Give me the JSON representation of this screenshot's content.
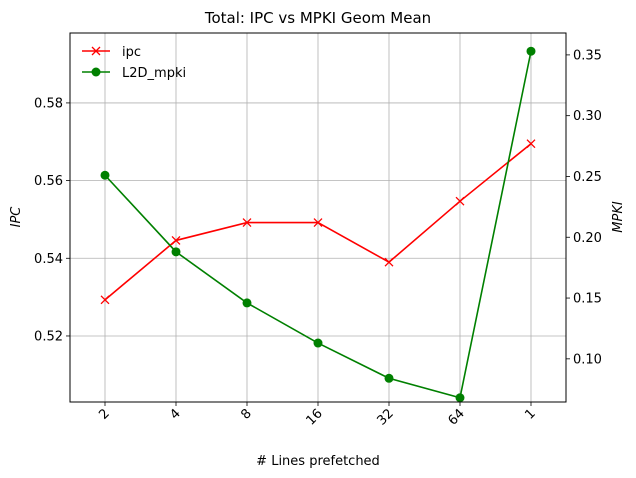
{
  "chart_data": {
    "type": "line",
    "title": "Total: IPC vs MPKI Geom Mean",
    "xlabel": "# Lines prefetched",
    "ylabel_left": "IPC",
    "ylabel_right": "MPKI",
    "categories": [
      "2",
      "4",
      "8",
      "16",
      "32",
      "64",
      "1"
    ],
    "left_axis": {
      "ylim": [
        0.503,
        0.598
      ],
      "ticks": [
        0.52,
        0.54,
        0.56,
        0.58
      ],
      "tick_labels": [
        "0.52",
        "0.54",
        "0.56",
        "0.58"
      ]
    },
    "right_axis": {
      "ylim": [
        0.0645,
        0.368
      ],
      "ticks": [
        0.1,
        0.15,
        0.2,
        0.25,
        0.3,
        0.35
      ],
      "tick_labels": [
        "0.10",
        "0.15",
        "0.20",
        "0.25",
        "0.30",
        "0.35"
      ]
    },
    "grid": true,
    "legend_position": "top-left",
    "series": [
      {
        "name": "ipc",
        "axis": "left",
        "color": "#ff0000",
        "marker": "x",
        "values": [
          0.5293,
          0.5446,
          0.5492,
          0.5492,
          0.539,
          0.5547,
          0.5695
        ]
      },
      {
        "name": "L2D_mpki",
        "axis": "right",
        "color": "#008000",
        "marker": "o",
        "values": [
          0.251,
          0.188,
          0.146,
          0.113,
          0.084,
          0.068,
          0.353
        ]
      }
    ]
  }
}
